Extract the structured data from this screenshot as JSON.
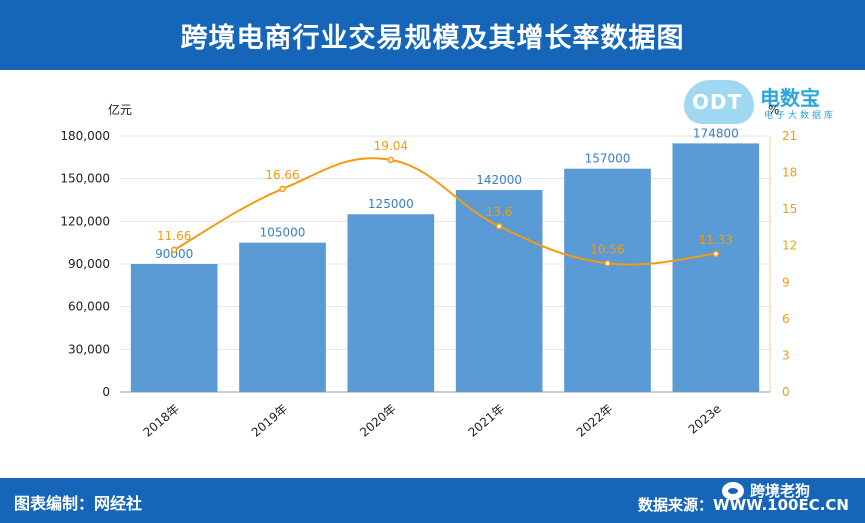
{
  "header": {
    "title": "跨境电商行业交易规模及其增长率数据图"
  },
  "footer": {
    "editor": "图表编制：网经社",
    "wechat": "跨境老狗",
    "source": "数据来源：WWW.100EC.CN"
  },
  "logo": {
    "cloud_text": "ODT",
    "brand": "电数宝",
    "brand_sub": "电子大数据库"
  },
  "colors": {
    "header_bg": "#1565b8",
    "bar": "#5b9bd5",
    "line": "#f39c12",
    "bar_label": "#3a7fc8"
  },
  "chart_data": {
    "type": "bar",
    "categories": [
      "2018年",
      "2019年",
      "2020年",
      "2021年",
      "2022年",
      "2023e"
    ],
    "series": [
      {
        "type": "bar",
        "values": [
          90000,
          105000,
          125000,
          142000,
          157000,
          174800
        ],
        "labels": [
          "90000",
          "105000",
          "125000",
          "142000",
          "157000",
          "174800"
        ],
        "axis": "left"
      },
      {
        "type": "line",
        "values": [
          11.66,
          16.66,
          19.04,
          13.6,
          10.56,
          11.33
        ],
        "labels": [
          "11.66",
          "16.66",
          "19.04",
          "13.6",
          "10.56",
          "11.33"
        ],
        "axis": "right"
      }
    ],
    "y_left": {
      "label": "亿元",
      "min": 0,
      "max": 180000,
      "ticks": [
        "0",
        "30,000",
        "60,000",
        "90,000",
        "120,000",
        "150,000",
        "180,000"
      ]
    },
    "y_right": {
      "label": "%",
      "min": 0,
      "max": 21,
      "ticks": [
        "0",
        "3",
        "6",
        "9",
        "12",
        "15",
        "18",
        "21"
      ]
    },
    "grid": true
  }
}
